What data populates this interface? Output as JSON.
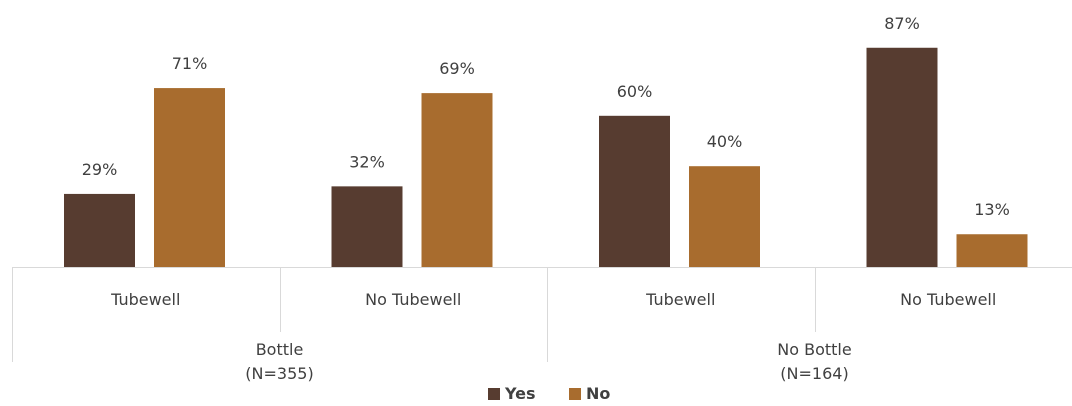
{
  "chart_data": {
    "type": "bar",
    "groups": [
      {
        "label": "Bottle",
        "n_label": "(N=355)",
        "categories": [
          "Tubewell",
          "No Tubewell"
        ]
      },
      {
        "label": "No Bottle",
        "n_label": "(N=164)",
        "categories": [
          "Tubewell",
          "No Tubewell"
        ]
      }
    ],
    "categories": [
      "Tubewell",
      "No Tubewell",
      "Tubewell",
      "No Tubewell"
    ],
    "series": [
      {
        "name": "Yes",
        "color": "#573c30",
        "values": [
          29,
          32,
          60,
          87
        ],
        "labels": [
          "29%",
          "32%",
          "60%",
          "87%"
        ]
      },
      {
        "name": "No",
        "color": "#a86c2e",
        "values": [
          71,
          69,
          40,
          13
        ],
        "labels": [
          "71%",
          "69%",
          "40%",
          "13%"
        ]
      }
    ],
    "unit": "%",
    "ylim": [
      0,
      100
    ],
    "grid": false,
    "legend_position": "bottom"
  }
}
